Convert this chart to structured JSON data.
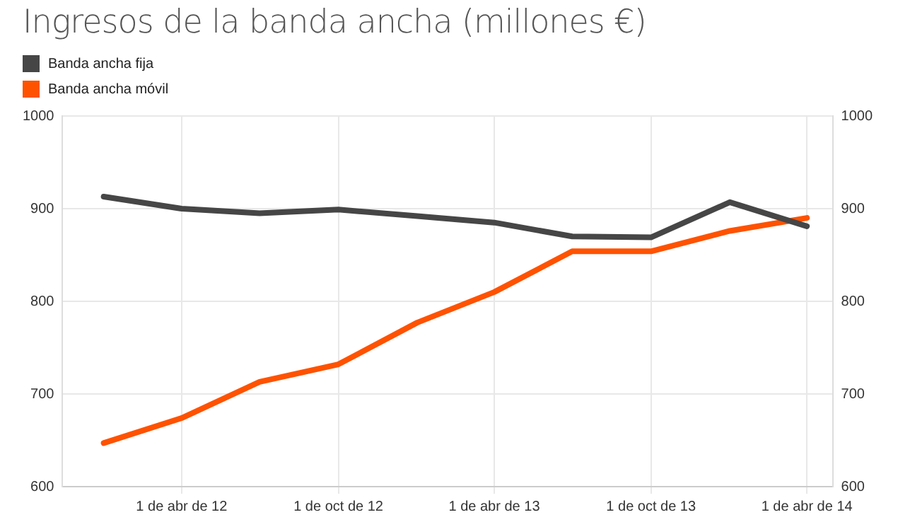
{
  "chart_data": {
    "type": "line",
    "title": "Ingresos de la banda ancha (millones €)",
    "x": [
      "2012-01-01",
      "2012-04-01",
      "2012-07-01",
      "2012-10-01",
      "2013-01-01",
      "2013-04-01",
      "2013-07-01",
      "2013-10-01",
      "2014-01-01",
      "2014-04-01"
    ],
    "series": [
      {
        "name": "Banda ancha fija",
        "color": "#464646",
        "values": [
          913,
          900,
          895,
          899,
          892,
          885,
          870,
          869,
          907,
          881
        ]
      },
      {
        "name": "Banda ancha móvil",
        "color": "#ff5200",
        "values": [
          647,
          674,
          713,
          732,
          777,
          810,
          854,
          854,
          876,
          890
        ]
      }
    ],
    "xlim": [
      "2011-11-14",
      "2014-05-01"
    ],
    "xticks": [
      {
        "value": "2012-04-01",
        "label": "1 de abr de 12"
      },
      {
        "value": "2012-10-01",
        "label": "1 de oct de 12"
      },
      {
        "value": "2013-04-01",
        "label": "1 de abr de 13"
      },
      {
        "value": "2013-10-01",
        "label": "1 de oct de 13"
      },
      {
        "value": "2014-04-01",
        "label": "1 de abr de 14"
      }
    ],
    "ylim": [
      600,
      1000
    ],
    "yticks": [
      600,
      700,
      800,
      900,
      1000
    ],
    "y2lim": [
      600,
      1000
    ],
    "y2ticks": [
      600,
      700,
      800,
      900,
      1000
    ],
    "grid": true,
    "legend": "top left",
    "marker": "none",
    "line_style": "solid"
  }
}
